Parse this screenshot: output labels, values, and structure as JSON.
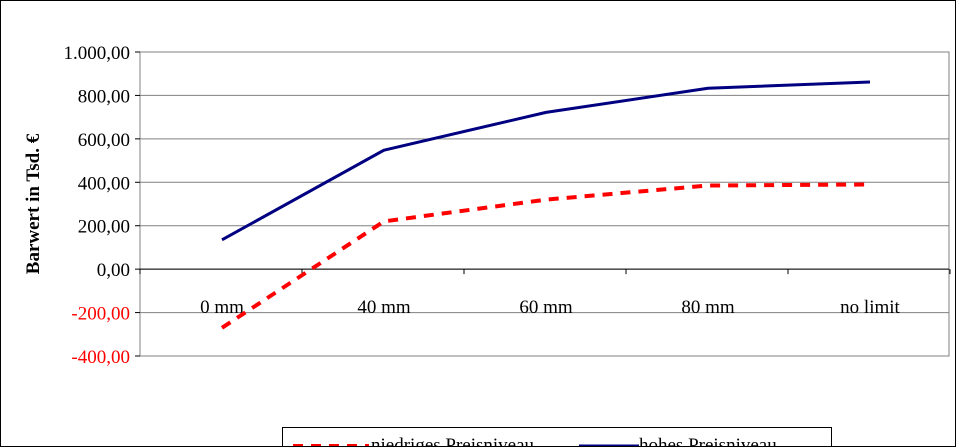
{
  "chart_data": {
    "type": "line",
    "ylabel": "Barwert in Tsd. €",
    "categories": [
      "0 mm",
      "40 mm",
      "60 mm",
      "80 mm",
      "no limit"
    ],
    "y_ticks": [
      "-400,00",
      "-200,00",
      "0,00",
      "200,00",
      "400,00",
      "600,00",
      "800,00",
      "1.000,00"
    ],
    "ylim": [
      -400,
      1000
    ],
    "grid": true,
    "legend_position": "bottom",
    "negative_tick_color": "#ff0000",
    "series": [
      {
        "name": "niedriges Preisniveau",
        "values": [
          -270,
          220,
          320,
          385,
          390
        ],
        "color": "#ff0000",
        "style": "dashed"
      },
      {
        "name": "hohes Preisniveau",
        "values": [
          135,
          548,
          722,
          833,
          862
        ],
        "color": "#000080",
        "style": "solid"
      }
    ]
  }
}
